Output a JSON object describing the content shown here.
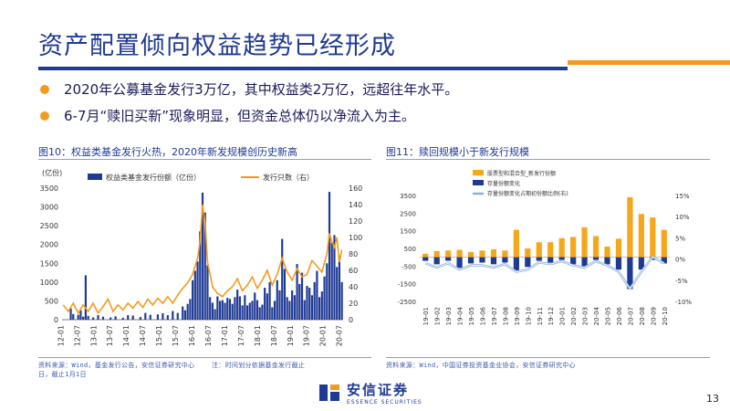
{
  "slide": {
    "title": "资产配置倾向权益趋势已经形成",
    "bullets": [
      "2020年公募基金发行3万亿，其中权益类2万亿，远超往年水平。",
      "6-7月“赎旧买新”现象明显，但资金总体仍以净流入为主。"
    ],
    "page_number": "13",
    "brand_cn": "安信证券",
    "brand_en": "ESSENCE SECURITIES",
    "colors": {
      "navy": "#1f3a93",
      "orange": "#f39a1e"
    }
  },
  "fig10": {
    "title": "图10：权益类基金发行火热，2020年新发规模创历史新高",
    "source": "资料来源：Wind，基金发行公告，安信证券研究中心",
    "note_a": "注：时间划分依据基金发行截止",
    "note_b": "日，截止1月1日"
  },
  "fig11": {
    "title": "图11：赎回规模小于新发行规模",
    "source": "资料来源：Wind，中国证券投资基金业协会，安信证券研究中心"
  },
  "chart_data": [
    {
      "type": "bar",
      "id": "fig10",
      "y_unit": "(亿份)",
      "ylim": [
        0,
        3500
      ],
      "y2lim": [
        0,
        160
      ],
      "yticks": [
        0,
        500,
        1000,
        1500,
        2000,
        2500,
        3000,
        3500
      ],
      "y2ticks": [
        0,
        20,
        40,
        60,
        80,
        100,
        120,
        140,
        160
      ],
      "xtick_labels": [
        "12-01",
        "12-07",
        "13-01",
        "13-07",
        "14-01",
        "14-07",
        "15-01",
        "15-07",
        "16-01",
        "16-07",
        "17-01",
        "17-07",
        "18-01",
        "18-07",
        "19-01",
        "19-07",
        "20-01",
        "20-07"
      ],
      "legend": [
        "权益类基金发行份额（亿份）",
        "发行只数（右）"
      ],
      "colors": {
        "bars": "#1f3a93",
        "line": "#f39a1e"
      },
      "bar_values": [
        {
          "x": 3,
          "v": 300
        },
        {
          "x": 4,
          "v": 150
        },
        {
          "x": 6,
          "v": 130
        },
        {
          "x": 7,
          "v": 250
        },
        {
          "x": 8,
          "v": 80
        },
        {
          "x": 9,
          "v": 1180
        },
        {
          "x": 10,
          "v": 100
        },
        {
          "x": 12,
          "v": 60
        },
        {
          "x": 14,
          "v": 120
        },
        {
          "x": 16,
          "v": 80
        },
        {
          "x": 19,
          "v": 60
        },
        {
          "x": 21,
          "v": 90
        },
        {
          "x": 24,
          "v": 50
        },
        {
          "x": 26,
          "v": 120
        },
        {
          "x": 28,
          "v": 110
        },
        {
          "x": 31,
          "v": 70
        },
        {
          "x": 33,
          "v": 180
        },
        {
          "x": 35,
          "v": 130
        },
        {
          "x": 38,
          "v": 140
        },
        {
          "x": 40,
          "v": 170
        },
        {
          "x": 42,
          "v": 120
        },
        {
          "x": 44,
          "v": 230
        },
        {
          "x": 46,
          "v": 180
        },
        {
          "x": 48,
          "v": 350
        },
        {
          "x": 49,
          "v": 250
        },
        {
          "x": 50,
          "v": 420
        },
        {
          "x": 51,
          "v": 550
        },
        {
          "x": 52,
          "v": 1050
        },
        {
          "x": 53,
          "v": 1300
        },
        {
          "x": 54,
          "v": 1550
        },
        {
          "x": 55,
          "v": 2350
        },
        {
          "x": 56,
          "v": 3380
        },
        {
          "x": 57,
          "v": 2850
        },
        {
          "x": 58,
          "v": 1450
        },
        {
          "x": 59,
          "v": 600
        },
        {
          "x": 60,
          "v": 450
        },
        {
          "x": 61,
          "v": 280
        },
        {
          "x": 62,
          "v": 620
        },
        {
          "x": 63,
          "v": 500
        },
        {
          "x": 64,
          "v": 520
        },
        {
          "x": 65,
          "v": 450
        },
        {
          "x": 66,
          "v": 580
        },
        {
          "x": 67,
          "v": 550
        },
        {
          "x": 68,
          "v": 420
        },
        {
          "x": 69,
          "v": 600
        },
        {
          "x": 70,
          "v": 800
        },
        {
          "x": 71,
          "v": 620
        },
        {
          "x": 72,
          "v": 380
        },
        {
          "x": 73,
          "v": 650
        },
        {
          "x": 74,
          "v": 380
        },
        {
          "x": 75,
          "v": 450
        },
        {
          "x": 76,
          "v": 500
        },
        {
          "x": 77,
          "v": 720
        },
        {
          "x": 78,
          "v": 520
        },
        {
          "x": 79,
          "v": 330
        },
        {
          "x": 80,
          "v": 400
        },
        {
          "x": 81,
          "v": 850
        },
        {
          "x": 82,
          "v": 700
        },
        {
          "x": 83,
          "v": 1000
        },
        {
          "x": 84,
          "v": 330
        },
        {
          "x": 85,
          "v": 500
        },
        {
          "x": 86,
          "v": 1050
        },
        {
          "x": 87,
          "v": 780
        },
        {
          "x": 88,
          "v": 2150
        },
        {
          "x": 89,
          "v": 1350
        },
        {
          "x": 90,
          "v": 600
        },
        {
          "x": 91,
          "v": 500
        },
        {
          "x": 92,
          "v": 780
        },
        {
          "x": 93,
          "v": 650
        },
        {
          "x": 94,
          "v": 1480
        },
        {
          "x": 95,
          "v": 950
        },
        {
          "x": 96,
          "v": 1250
        },
        {
          "x": 97,
          "v": 520
        },
        {
          "x": 98,
          "v": 900
        },
        {
          "x": 99,
          "v": 850
        },
        {
          "x": 100,
          "v": 650
        },
        {
          "x": 101,
          "v": 1000
        },
        {
          "x": 102,
          "v": 1300
        },
        {
          "x": 103,
          "v": 600
        },
        {
          "x": 104,
          "v": 750
        },
        {
          "x": 105,
          "v": 1150
        },
        {
          "x": 106,
          "v": 1500
        },
        {
          "x": 107,
          "v": 3400
        },
        {
          "x": 108,
          "v": 2050
        },
        {
          "x": 109,
          "v": 2250
        },
        {
          "x": 110,
          "v": 1400
        },
        {
          "x": 111,
          "v": 1700
        },
        {
          "x": 112,
          "v": 1000
        }
      ],
      "line_values": [
        {
          "x": 0,
          "v": 18
        },
        {
          "x": 2,
          "v": 10
        },
        {
          "x": 4,
          "v": 20
        },
        {
          "x": 6,
          "v": 8
        },
        {
          "x": 8,
          "v": 18
        },
        {
          "x": 10,
          "v": 10
        },
        {
          "x": 12,
          "v": 20
        },
        {
          "x": 14,
          "v": 8
        },
        {
          "x": 16,
          "v": 16
        },
        {
          "x": 18,
          "v": 25
        },
        {
          "x": 20,
          "v": 10
        },
        {
          "x": 22,
          "v": 18
        },
        {
          "x": 24,
          "v": 12
        },
        {
          "x": 26,
          "v": 20
        },
        {
          "x": 28,
          "v": 14
        },
        {
          "x": 30,
          "v": 22
        },
        {
          "x": 32,
          "v": 15
        },
        {
          "x": 34,
          "v": 25
        },
        {
          "x": 36,
          "v": 18
        },
        {
          "x": 38,
          "v": 26
        },
        {
          "x": 40,
          "v": 20
        },
        {
          "x": 42,
          "v": 28
        },
        {
          "x": 44,
          "v": 20
        },
        {
          "x": 46,
          "v": 30
        },
        {
          "x": 48,
          "v": 38
        },
        {
          "x": 50,
          "v": 45
        },
        {
          "x": 52,
          "v": 55
        },
        {
          "x": 54,
          "v": 75
        },
        {
          "x": 55,
          "v": 95
        },
        {
          "x": 56,
          "v": 140
        },
        {
          "x": 57,
          "v": 118
        },
        {
          "x": 58,
          "v": 70
        },
        {
          "x": 60,
          "v": 40
        },
        {
          "x": 62,
          "v": 32
        },
        {
          "x": 64,
          "v": 28
        },
        {
          "x": 66,
          "v": 35
        },
        {
          "x": 68,
          "v": 40
        },
        {
          "x": 70,
          "v": 50
        },
        {
          "x": 72,
          "v": 35
        },
        {
          "x": 74,
          "v": 42
        },
        {
          "x": 76,
          "v": 52
        },
        {
          "x": 78,
          "v": 38
        },
        {
          "x": 80,
          "v": 48
        },
        {
          "x": 82,
          "v": 60
        },
        {
          "x": 84,
          "v": 42
        },
        {
          "x": 86,
          "v": 55
        },
        {
          "x": 88,
          "v": 75
        },
        {
          "x": 90,
          "v": 58
        },
        {
          "x": 92,
          "v": 48
        },
        {
          "x": 94,
          "v": 62
        },
        {
          "x": 96,
          "v": 52
        },
        {
          "x": 98,
          "v": 55
        },
        {
          "x": 100,
          "v": 72
        },
        {
          "x": 102,
          "v": 65
        },
        {
          "x": 104,
          "v": 58
        },
        {
          "x": 106,
          "v": 80
        },
        {
          "x": 107,
          "v": 105
        },
        {
          "x": 108,
          "v": 95
        },
        {
          "x": 109,
          "v": 88
        },
        {
          "x": 110,
          "v": 100
        },
        {
          "x": 111,
          "v": 70
        },
        {
          "x": 112,
          "v": 85
        }
      ],
      "x_count": 113
    },
    {
      "type": "bar",
      "id": "fig11",
      "ylim": [
        -2500,
        3500
      ],
      "y2lim": [
        -10,
        15
      ],
      "yticks": [
        -2500,
        -1500,
        -500,
        500,
        1500,
        2500,
        3500
      ],
      "y2ticks": [
        -10,
        -5,
        0,
        5,
        10,
        15
      ],
      "y2tick_labels": [
        "-10%",
        "-5%",
        "0%",
        "5%",
        "10%",
        "15%"
      ],
      "categories": [
        "19-01",
        "19-02",
        "19-03",
        "19-04",
        "19-05",
        "19-06",
        "19-07",
        "19-08",
        "19-09",
        "19-10",
        "19-11",
        "19-12",
        "20-01",
        "20-02",
        "20-03",
        "20-04",
        "20-05",
        "20-06",
        "20-07",
        "20-08",
        "20-09",
        "20-10"
      ],
      "legend": [
        "股票型和混合型_新发行份额",
        "存量份额变化",
        "存量份额变化占期初份额比例(右)"
      ],
      "series": [
        {
          "name": "股票型和混合型_新发行份额",
          "color": "#f5a71c",
          "values": [
            200,
            350,
            380,
            420,
            300,
            380,
            450,
            380,
            1550,
            500,
            850,
            850,
            1080,
            1150,
            1700,
            1200,
            600,
            1050,
            3400,
            2450,
            2250,
            1550
          ]
        },
        {
          "name": "存量份额变化",
          "color": "#1f3a93",
          "values": [
            -200,
            -400,
            -200,
            -600,
            -350,
            -300,
            -400,
            -300,
            -750,
            -550,
            -200,
            -300,
            -150,
            -400,
            -550,
            -150,
            -400,
            -700,
            -1800,
            -700,
            -150,
            -350
          ]
        },
        {
          "name": "存量份额变化占期初份额比例(右)",
          "color": "#8ab0d8",
          "values": [
            -1,
            -2,
            -1,
            -2.5,
            -1.5,
            -1.5,
            -2,
            -1.2,
            -3,
            -2.5,
            -0.8,
            -1.2,
            -0.5,
            -1.5,
            -2,
            -0.5,
            -1.5,
            -3,
            -7,
            -3,
            0.5,
            -1
          ]
        }
      ]
    }
  ]
}
